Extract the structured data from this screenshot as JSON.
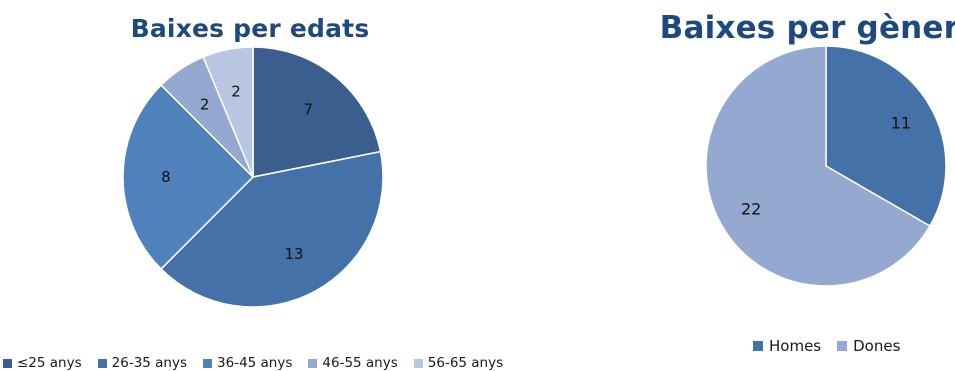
{
  "chart_data": [
    {
      "type": "pie",
      "title": "Baixes per edats",
      "categories": [
        "≤25 anys",
        "26-35 anys",
        "36-45 anys",
        "46-55 anys",
        "56-65 anys"
      ],
      "values": [
        7,
        13,
        8,
        2,
        2
      ],
      "colors": [
        "#3a5f8e",
        "#4472a8",
        "#4f81bd",
        "#95a9d0",
        "#b9c6e2"
      ],
      "legend": "bottom"
    },
    {
      "type": "pie",
      "title": "Baixes per gènere",
      "categories": [
        "Homes",
        "Dones"
      ],
      "values": [
        11,
        22
      ],
      "colors": [
        "#4472a8",
        "#95a9d0"
      ],
      "legend": "bottom"
    }
  ]
}
